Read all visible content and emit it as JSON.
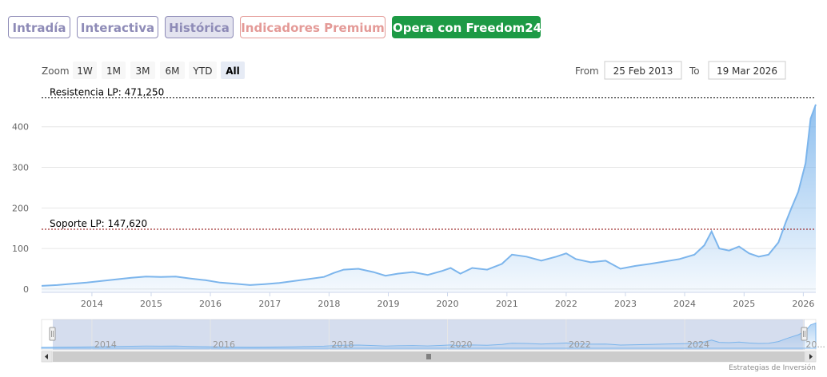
{
  "tabs": {
    "intradia": "Intradía",
    "interactiva": "Interactiva",
    "historica": "Histórica",
    "premium": "Indicadores Premium",
    "freedom": "Opera con Freedom24"
  },
  "range_selector": {
    "zoom_label": "Zoom",
    "buttons": [
      "1W",
      "1M",
      "3M",
      "6M",
      "YTD",
      "All"
    ],
    "selected": "All",
    "from_label": "From",
    "from_value": "25 Feb 2013",
    "to_label": "To",
    "to_value": "19 Mar 2026"
  },
  "colors": {
    "line": "#7cb5ec",
    "area_top": "#7cb5ec",
    "tab_purple": "#8e8bb7",
    "tab_red": "#e49a97",
    "tab_green": "#1d9a45",
    "support_line": "#8b0000",
    "resistance_line": "#000000"
  },
  "chart_data": {
    "type": "area",
    "x_ticks": [
      "2014",
      "2015",
      "2016",
      "2017",
      "2018",
      "2019",
      "2020",
      "2021",
      "2022",
      "2023",
      "2024",
      "2025",
      "2026"
    ],
    "y_ticks": [
      0,
      100,
      200,
      300,
      400
    ],
    "ylim": [
      -8,
      490
    ],
    "xlim": [
      "2013-02-25",
      "2026-03-19"
    ],
    "series": [
      {
        "x": [
          "2013-02-25",
          "2013-06-01",
          "2013-09-01",
          "2013-12-01",
          "2014-03-01",
          "2014-06-01",
          "2014-09-01",
          "2014-12-01",
          "2015-03-01",
          "2015-06-01",
          "2015-09-01",
          "2015-12-01",
          "2016-03-01",
          "2016-06-01",
          "2016-09-01",
          "2016-12-01",
          "2017-03-01",
          "2017-06-01",
          "2017-09-01",
          "2017-12-01",
          "2018-02-01",
          "2018-04-01",
          "2018-07-01",
          "2018-10-01",
          "2018-12-15",
          "2019-03-01",
          "2019-06-01",
          "2019-09-01",
          "2019-12-01",
          "2020-01-20",
          "2020-03-20",
          "2020-06-01",
          "2020-09-01",
          "2020-12-01",
          "2021-02-01",
          "2021-05-01",
          "2021-08-01",
          "2021-11-01",
          "2022-01-01",
          "2022-03-01",
          "2022-06-01",
          "2022-09-01",
          "2022-12-01",
          "2023-03-01",
          "2023-06-01",
          "2023-09-01",
          "2023-12-01",
          "2024-03-01",
          "2024-05-01",
          "2024-06-15",
          "2024-08-01",
          "2024-10-01",
          "2024-12-01",
          "2025-02-01",
          "2025-04-01",
          "2025-06-01",
          "2025-08-01",
          "2025-09-15",
          "2025-10-20",
          "2025-12-01",
          "2026-01-15",
          "2026-02-15",
          "2026-03-19"
        ],
        "y": [
          8,
          10,
          13,
          16,
          20,
          24,
          28,
          31,
          30,
          31,
          26,
          22,
          16,
          13,
          10,
          12,
          15,
          20,
          25,
          30,
          40,
          48,
          50,
          42,
          33,
          38,
          42,
          35,
          45,
          52,
          38,
          52,
          48,
          62,
          85,
          80,
          70,
          80,
          88,
          74,
          66,
          70,
          50,
          57,
          62,
          68,
          74,
          85,
          108,
          142,
          100,
          95,
          105,
          88,
          80,
          85,
          115,
          165,
          200,
          240,
          310,
          420,
          455
        ]
      }
    ],
    "annotations": [
      {
        "label": "Resistencia LP: 471,250",
        "value": 471.25
      },
      {
        "label": "Soporte LP: 147,620",
        "value": 147.62
      }
    ],
    "navigator": {
      "x_ticks": [
        "2014",
        "2016",
        "2018",
        "2020",
        "2022",
        "2024",
        "20..."
      ]
    },
    "credit": "Estrategias de Inversión"
  }
}
